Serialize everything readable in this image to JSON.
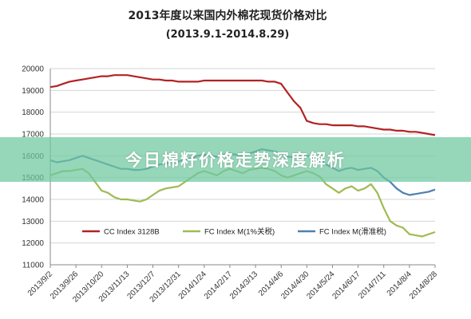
{
  "overlay": {
    "text": "今日棉籽价格走势深度解析"
  },
  "colors": {
    "cc": "#b22222",
    "fc1": "#9ebb55",
    "fc2": "#4f7fb0",
    "overlay_band": "#6ec8a0"
  },
  "chart_data": {
    "type": "line",
    "title": "2013年度以来国内外棉花现货价格对比",
    "subtitle": "(2013.9.1-2014.8.29)",
    "x_ticks": [
      "2013/9/2",
      "2013/9/26",
      "2013/10/20",
      "2013/11/13",
      "2013/12/7",
      "2013/12/31",
      "2014/1/24",
      "2014/2/17",
      "2014/3/13",
      "2014/4/6",
      "2014/4/30",
      "2014/5/24",
      "2014/6/17",
      "2014/7/11",
      "2014/8/4",
      "2014/8/28"
    ],
    "ylim": [
      11000,
      20000
    ],
    "y_ticks": [
      11000,
      12000,
      13000,
      14000,
      15000,
      16000,
      17000,
      18000,
      19000,
      20000
    ],
    "grid": true,
    "legend_position": "bottom-inside",
    "series": [
      {
        "name": "CC Index 3128B",
        "color_key": "cc",
        "x": [
          "2013/9/2",
          "2013/9/8",
          "2013/9/14",
          "2013/9/20",
          "2013/9/26",
          "2013/10/2",
          "2013/10/8",
          "2013/10/14",
          "2013/10/20",
          "2013/10/26",
          "2013/11/1",
          "2013/11/7",
          "2013/11/13",
          "2013/11/19",
          "2013/11/25",
          "2013/12/1",
          "2013/12/7",
          "2013/12/13",
          "2013/12/19",
          "2013/12/25",
          "2013/12/31",
          "2014/1/6",
          "2014/1/12",
          "2014/1/18",
          "2014/1/24",
          "2014/1/30",
          "2014/2/5",
          "2014/2/11",
          "2014/2/17",
          "2014/2/23",
          "2014/3/1",
          "2014/3/7",
          "2014/3/13",
          "2014/3/19",
          "2014/3/25",
          "2014/3/31",
          "2014/4/6",
          "2014/4/12",
          "2014/4/18",
          "2014/4/24",
          "2014/4/30",
          "2014/5/6",
          "2014/5/12",
          "2014/5/18",
          "2014/5/24",
          "2014/5/30",
          "2014/6/5",
          "2014/6/11",
          "2014/6/17",
          "2014/6/23",
          "2014/6/29",
          "2014/7/5",
          "2014/7/11",
          "2014/7/17",
          "2014/7/23",
          "2014/7/29",
          "2014/8/4",
          "2014/8/10",
          "2014/8/16",
          "2014/8/22",
          "2014/8/28"
        ],
        "values": [
          19150,
          19200,
          19300,
          19400,
          19450,
          19500,
          19550,
          19600,
          19650,
          19650,
          19700,
          19700,
          19700,
          19650,
          19600,
          19550,
          19500,
          19500,
          19450,
          19450,
          19400,
          19400,
          19400,
          19400,
          19450,
          19450,
          19450,
          19450,
          19450,
          19450,
          19450,
          19450,
          19450,
          19450,
          19400,
          19400,
          19300,
          18900,
          18500,
          18200,
          17600,
          17500,
          17450,
          17450,
          17400,
          17400,
          17400,
          17400,
          17350,
          17350,
          17300,
          17250,
          17200,
          17200,
          17150,
          17150,
          17100,
          17100,
          17050,
          17000,
          16950
        ]
      },
      {
        "name": "FC Index M(1%关税)",
        "color_key": "fc1",
        "x": [
          "2013/9/2",
          "2013/9/8",
          "2013/9/14",
          "2013/9/20",
          "2013/9/26",
          "2013/10/2",
          "2013/10/8",
          "2013/10/14",
          "2013/10/20",
          "2013/10/26",
          "2013/11/1",
          "2013/11/7",
          "2013/11/13",
          "2013/11/19",
          "2013/11/25",
          "2013/12/1",
          "2013/12/7",
          "2013/12/13",
          "2013/12/19",
          "2013/12/25",
          "2013/12/31",
          "2014/1/6",
          "2014/1/12",
          "2014/1/18",
          "2014/1/24",
          "2014/1/30",
          "2014/2/5",
          "2014/2/11",
          "2014/2/17",
          "2014/2/23",
          "2014/3/1",
          "2014/3/7",
          "2014/3/13",
          "2014/3/19",
          "2014/3/25",
          "2014/3/31",
          "2014/4/6",
          "2014/4/12",
          "2014/4/18",
          "2014/4/24",
          "2014/4/30",
          "2014/5/6",
          "2014/5/12",
          "2014/5/18",
          "2014/5/24",
          "2014/5/30",
          "2014/6/5",
          "2014/6/11",
          "2014/6/17",
          "2014/6/23",
          "2014/6/29",
          "2014/7/5",
          "2014/7/11",
          "2014/7/17",
          "2014/7/23",
          "2014/7/29",
          "2014/8/4",
          "2014/8/10",
          "2014/8/16",
          "2014/8/22",
          "2014/8/28"
        ],
        "values": [
          15100,
          15200,
          15300,
          15300,
          15350,
          15400,
          15200,
          14800,
          14400,
          14300,
          14100,
          14000,
          14000,
          13950,
          13900,
          14000,
          14200,
          14400,
          14500,
          14550,
          14600,
          14800,
          15000,
          15200,
          15300,
          15200,
          15100,
          15300,
          15400,
          15300,
          15200,
          15350,
          15400,
          15450,
          15400,
          15300,
          15100,
          15000,
          15100,
          15200,
          15300,
          15200,
          15050,
          14700,
          14500,
          14300,
          14500,
          14600,
          14400,
          14500,
          14700,
          14300,
          13600,
          13000,
          12800,
          12700,
          12400,
          12350,
          12300,
          12400,
          12500
        ]
      },
      {
        "name": "FC Index M(滑准税)",
        "color_key": "fc2",
        "x": [
          "2013/9/2",
          "2013/9/8",
          "2013/9/14",
          "2013/9/20",
          "2013/9/26",
          "2013/10/2",
          "2013/10/8",
          "2013/10/14",
          "2013/10/20",
          "2013/10/26",
          "2013/11/1",
          "2013/11/7",
          "2013/11/13",
          "2013/11/19",
          "2013/11/25",
          "2013/12/1",
          "2013/12/7",
          "2013/12/13",
          "2013/12/19",
          "2013/12/25",
          "2013/12/31",
          "2014/1/6",
          "2014/1/12",
          "2014/1/18",
          "2014/1/24",
          "2014/1/30",
          "2014/2/5",
          "2014/2/11",
          "2014/2/17",
          "2014/2/23",
          "2014/3/1",
          "2014/3/7",
          "2014/3/13",
          "2014/3/19",
          "2014/3/25",
          "2014/3/31",
          "2014/4/6",
          "2014/4/12",
          "2014/4/18",
          "2014/4/24",
          "2014/4/30",
          "2014/5/6",
          "2014/5/12",
          "2014/5/18",
          "2014/5/24",
          "2014/5/30",
          "2014/6/5",
          "2014/6/11",
          "2014/6/17",
          "2014/6/23",
          "2014/6/29",
          "2014/7/5",
          "2014/7/11",
          "2014/7/17",
          "2014/7/23",
          "2014/7/29",
          "2014/8/4",
          "2014/8/10",
          "2014/8/16",
          "2014/8/22",
          "2014/8/28"
        ],
        "values": [
          15800,
          15700,
          15750,
          15800,
          15900,
          16000,
          15900,
          15800,
          15700,
          15600,
          15500,
          15400,
          15400,
          15350,
          15350,
          15400,
          15500,
          15600,
          15650,
          15700,
          15750,
          15800,
          15900,
          16000,
          16050,
          16000,
          15950,
          16050,
          16100,
          16050,
          16000,
          16100,
          16200,
          16300,
          16250,
          16200,
          16050,
          15950,
          15950,
          16000,
          16000,
          15950,
          15850,
          15600,
          15450,
          15300,
          15400,
          15450,
          15350,
          15400,
          15450,
          15300,
          15000,
          14800,
          14500,
          14300,
          14200,
          14250,
          14300,
          14350,
          14450
        ]
      }
    ]
  }
}
